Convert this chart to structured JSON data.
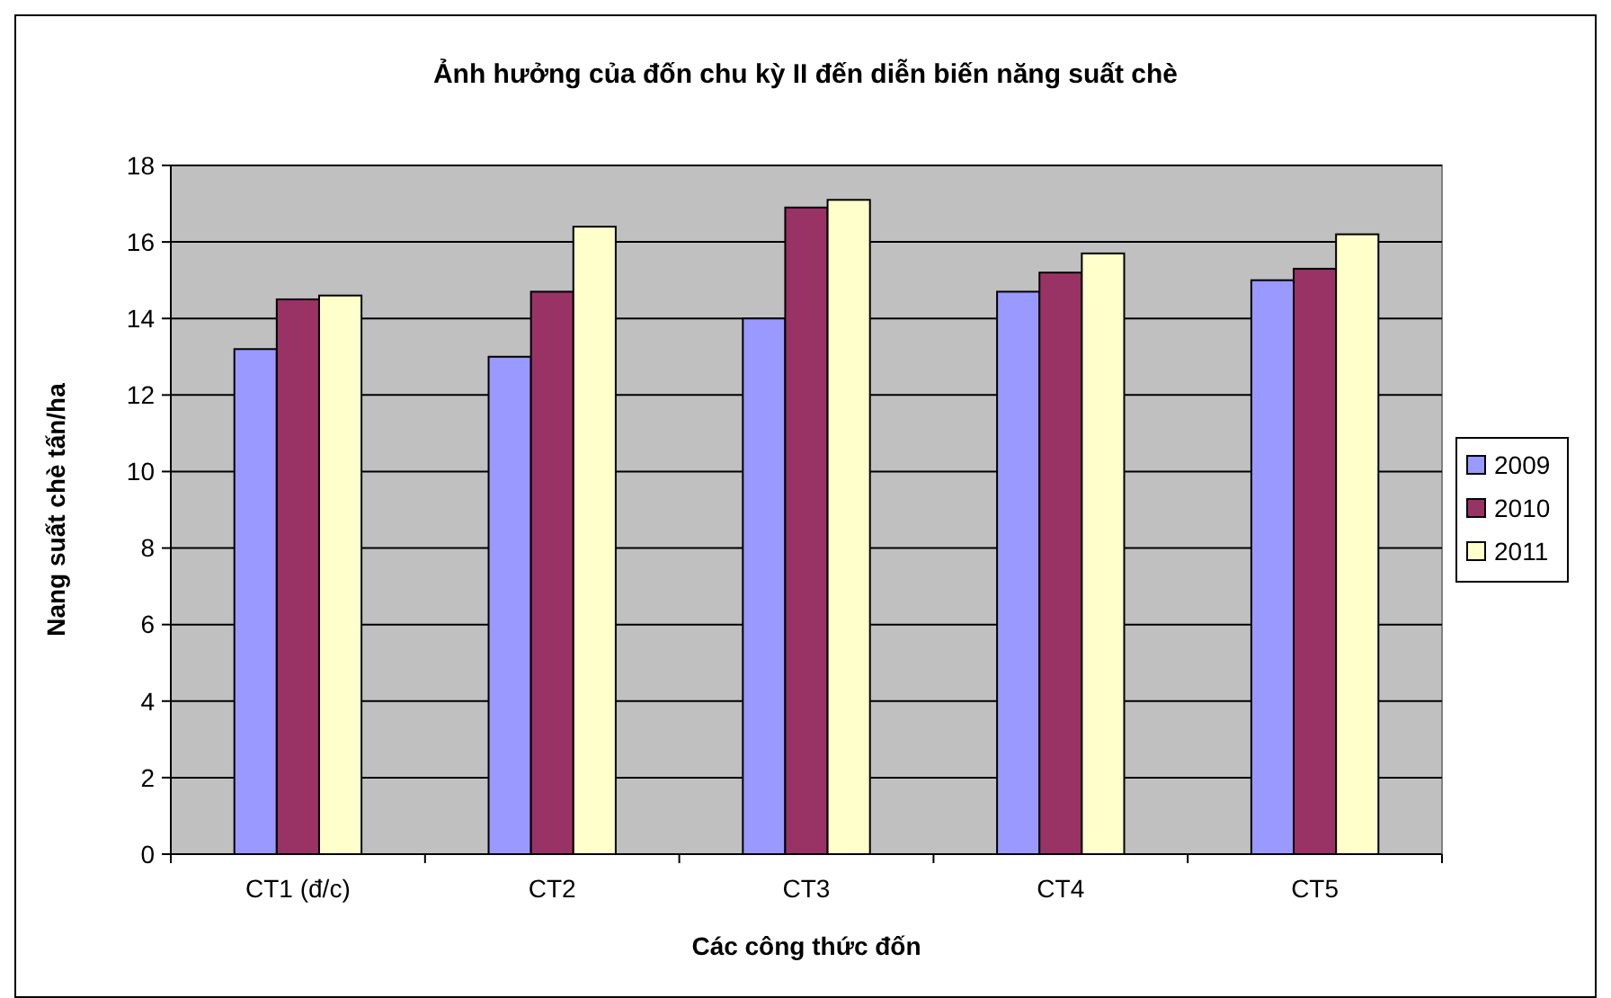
{
  "chart_data": {
    "type": "bar",
    "title": "Ảnh hưởng của đốn chu kỳ II đến diễn biến năng suất chè",
    "xlabel": "Các công thức đốn",
    "ylabel": "Nang suất chè tấn/ha",
    "categories": [
      "CT1 (đ/c)",
      "CT2",
      "CT3",
      "CT4",
      "CT5"
    ],
    "series": [
      {
        "name": "2009",
        "color": "#9999ff",
        "values": [
          13.2,
          13.0,
          14.0,
          14.7,
          15.0
        ]
      },
      {
        "name": "2010",
        "color": "#993366",
        "values": [
          14.5,
          14.7,
          16.9,
          15.2,
          15.3
        ]
      },
      {
        "name": "2011",
        "color": "#ffffcc",
        "values": [
          14.6,
          16.4,
          17.1,
          15.7,
          16.2
        ]
      }
    ],
    "ylim": [
      0,
      18
    ],
    "yticks": [
      0,
      2,
      4,
      6,
      8,
      10,
      12,
      14,
      16,
      18
    ],
    "grid": "y",
    "legend": "right"
  }
}
